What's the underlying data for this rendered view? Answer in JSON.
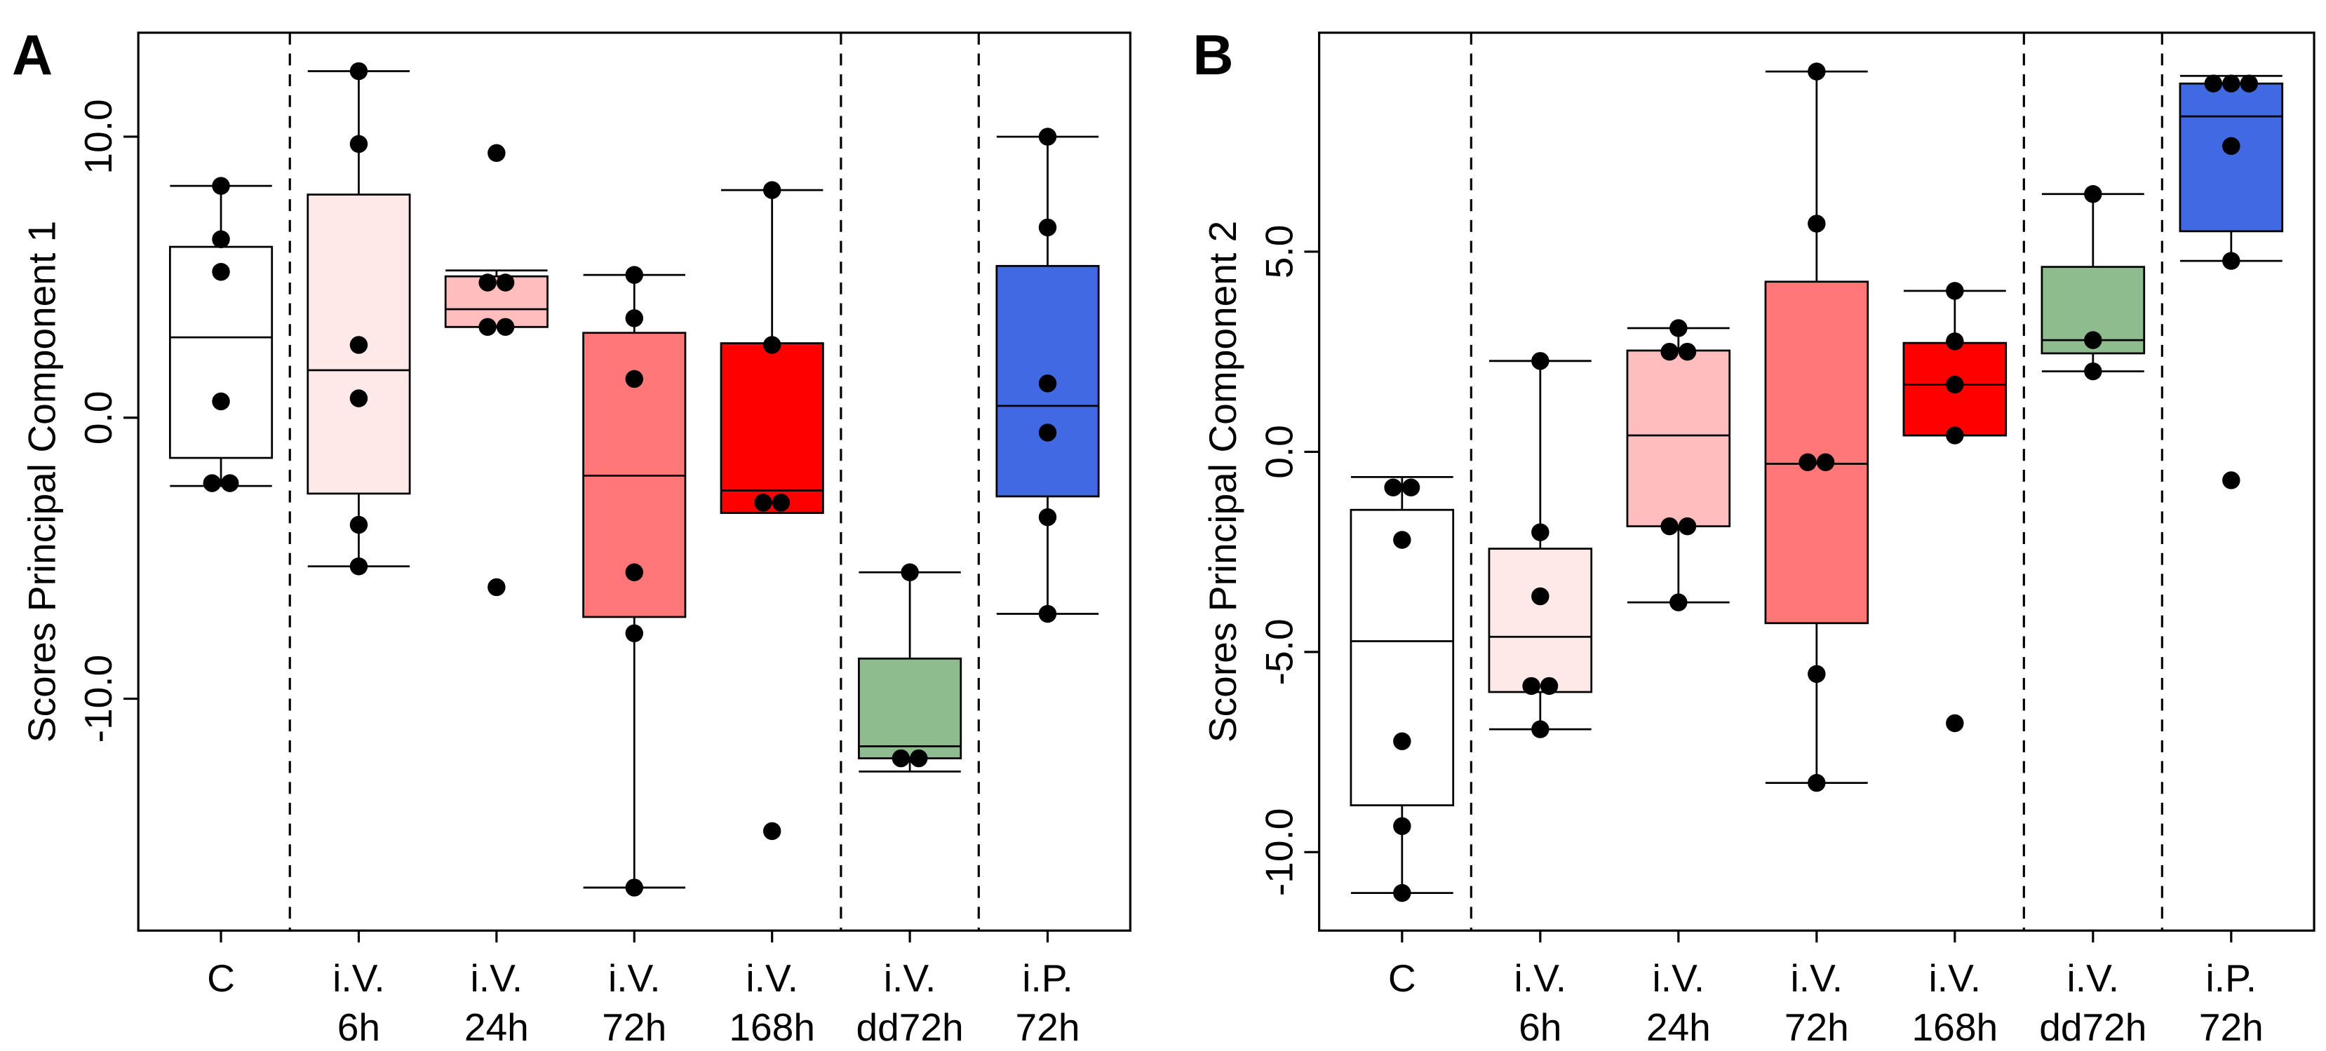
{
  "chart_data": [
    {
      "type": "box",
      "panel": "A",
      "ylabel": "Scores Principal Component 1",
      "categories": [
        [
          "C"
        ],
        [
          "i.V.",
          "6h"
        ],
        [
          "i.V.",
          "24h"
        ],
        [
          "i.V.",
          "72h"
        ],
        [
          "i.V.",
          "168h"
        ],
        [
          "i.V.",
          "dd72h"
        ],
        [
          "i.P.",
          "72h"
        ]
      ],
      "separators": [
        0.5,
        4.5,
        5.5
      ],
      "ylim": [
        -18.25,
        13.7
      ],
      "yticks": [
        {
          "value": -10,
          "label": "-10.0"
        },
        {
          "value": 0,
          "label": "0.0"
        },
        {
          "value": 10,
          "label": "10.0"
        }
      ],
      "boxes": [
        {
          "color": "#ffffff",
          "min": -2.43,
          "q1": -1.43,
          "median": 2.86,
          "q3": 6.08,
          "max": 8.25,
          "points": [
            8.25,
            6.35,
            5.19,
            0.58,
            -2.33,
            -2.33
          ]
        },
        {
          "color": "#ffe8e8",
          "min": -5.29,
          "q1": -2.7,
          "median": 1.69,
          "q3": 7.94,
          "max": 12.33,
          "points": [
            12.33,
            9.74,
            2.59,
            0.69,
            -3.81,
            -5.29
          ]
        },
        {
          "color": "#ffbdbd",
          "min": 3.23,
          "q1": 3.23,
          "median": 3.86,
          "q3": 5.03,
          "max": 5.24,
          "points": [
            9.42,
            4.81,
            4.81,
            3.23,
            3.23,
            -6.03
          ]
        },
        {
          "color": "#ff7777",
          "min": -16.72,
          "q1": -7.09,
          "median": -2.06,
          "q3": 3.02,
          "max": 5.08,
          "points": [
            5.08,
            3.54,
            1.38,
            -5.5,
            -7.67,
            -16.72
          ]
        },
        {
          "color": "#ff0000",
          "min": -3.39,
          "q1": -3.39,
          "median": -2.59,
          "q3": 2.65,
          "max": 8.1,
          "points": [
            8.1,
            2.59,
            -3.02,
            -3.02,
            -14.71
          ]
        },
        {
          "color": "#8fbc8f",
          "min": -12.59,
          "q1": -12.12,
          "median": -11.69,
          "q3": -8.57,
          "max": -5.5,
          "points": [
            -5.5,
            -12.12,
            -12.12
          ]
        },
        {
          "color": "#4169e1",
          "min": -6.98,
          "q1": -2.8,
          "median": 0.42,
          "q3": 5.4,
          "max": 10.0,
          "points": [
            10.0,
            6.77,
            1.22,
            -0.53,
            -3.54,
            -6.98
          ]
        }
      ]
    },
    {
      "type": "box",
      "panel": "B",
      "ylabel": "Scores Principal Component 2",
      "categories": [
        [
          "C"
        ],
        [
          "i.V.",
          "6h"
        ],
        [
          "i.V.",
          "24h"
        ],
        [
          "i.V.",
          "72h"
        ],
        [
          "i.V.",
          "168h"
        ],
        [
          "i.V.",
          "dd72h"
        ],
        [
          "i.P.",
          "72h"
        ]
      ],
      "separators": [
        0.5,
        4.5,
        5.5
      ],
      "ylim": [
        -11.96,
        10.47
      ],
      "yticks": [
        {
          "value": -10,
          "label": "-10.0"
        },
        {
          "value": -5,
          "label": "-5.0"
        },
        {
          "value": 0,
          "label": "0.0"
        },
        {
          "value": 5,
          "label": "5.0"
        }
      ],
      "boxes": [
        {
          "color": "#ffffff",
          "min": -11.02,
          "q1": -8.83,
          "median": -4.73,
          "q3": -1.45,
          "max": -0.63,
          "points": [
            -0.89,
            -0.89,
            -2.2,
            -7.23,
            -9.35,
            -11.02
          ]
        },
        {
          "color": "#ffe8e8",
          "min": -6.93,
          "q1": -6.0,
          "median": -4.62,
          "q3": -2.42,
          "max": 2.27,
          "points": [
            2.27,
            -2.01,
            -3.61,
            -5.85,
            -5.85,
            -6.93
          ]
        },
        {
          "color": "#ffbdbd",
          "min": -3.76,
          "q1": -1.86,
          "median": 0.41,
          "q3": 2.53,
          "max": 3.09,
          "points": [
            3.09,
            2.5,
            2.5,
            -1.86,
            -1.86,
            -3.76
          ]
        },
        {
          "color": "#ff7777",
          "min": -8.27,
          "q1": -4.28,
          "median": -0.3,
          "q3": 4.25,
          "max": 9.5,
          "points": [
            9.5,
            5.7,
            -0.26,
            -0.26,
            -5.55,
            -8.27
          ]
        },
        {
          "color": "#ff0000",
          "min": 0.41,
          "q1": 0.41,
          "median": 1.68,
          "q3": 2.72,
          "max": 4.02,
          "points": [
            4.02,
            2.76,
            1.68,
            0.41,
            -6.78
          ]
        },
        {
          "color": "#8fbc8f",
          "min": 2.01,
          "q1": 2.46,
          "median": 2.79,
          "q3": 4.62,
          "max": 6.44,
          "points": [
            6.44,
            2.79,
            2.01
          ]
        },
        {
          "color": "#4169e1",
          "min": 4.77,
          "q1": 5.51,
          "median": 8.38,
          "q3": 9.2,
          "max": 9.39,
          "points": [
            9.2,
            9.2,
            9.2,
            7.64,
            4.77,
            -0.71
          ]
        }
      ]
    }
  ]
}
